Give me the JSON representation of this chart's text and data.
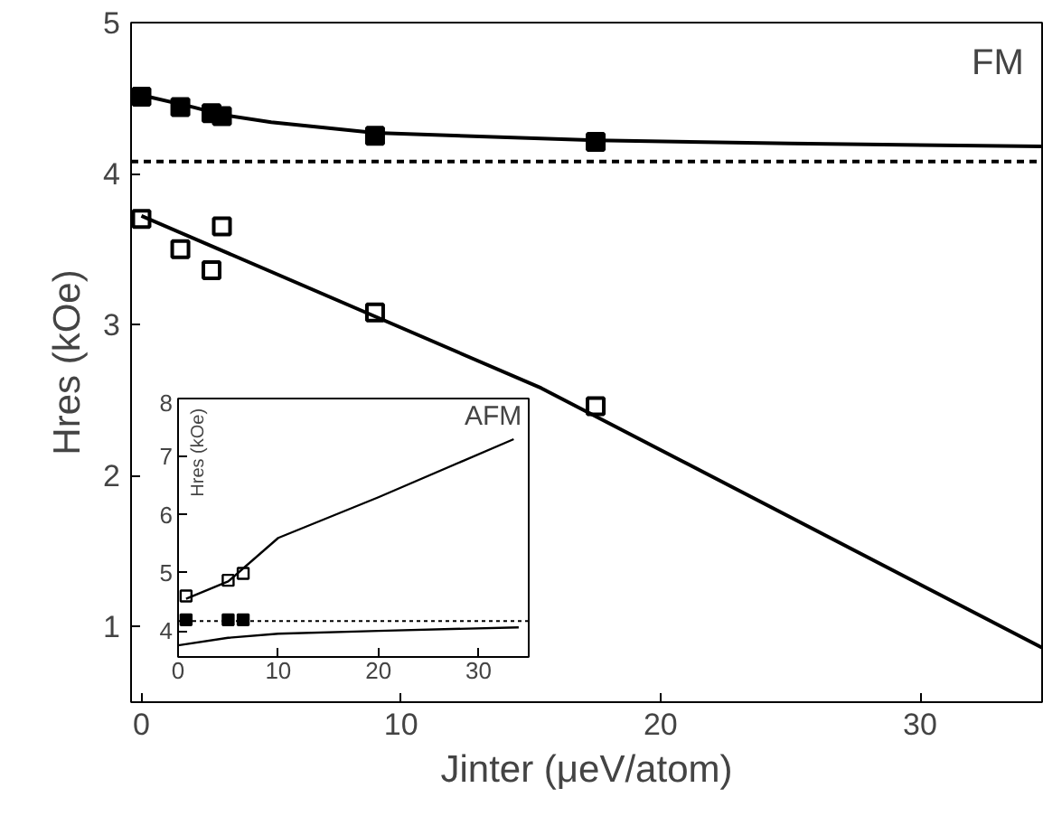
{
  "chart_data": [
    {
      "type": "scatter",
      "xlabel": "Jinter (μeV/atom)",
      "ylabel": "Hres (kOe)",
      "xlim": [
        -0.4,
        34.7
      ],
      "ylim": [
        0.5,
        5
      ],
      "xticks": [
        0,
        10,
        20,
        30
      ],
      "yticks": [
        1,
        2,
        3,
        4,
        5
      ],
      "annotations": [
        "FM"
      ],
      "ref_lines": [
        {
          "axis": "y",
          "value": 4.08,
          "label": null,
          "line_style": "dashed",
          "color": "#000000"
        }
      ],
      "series": [
        {
          "color": "#000000",
          "marker": "square",
          "x": [
            0,
            1.5,
            2.7,
            3.1,
            9,
            17.5
          ],
          "values": [
            4.51,
            4.44,
            4.4,
            4.38,
            4.25,
            4.21
          ]
        },
        {
          "type": "line",
          "color": "#000000",
          "marker": "none",
          "x": [
            0,
            2,
            3.1,
            5,
            9,
            17.5,
            25,
            34.7
          ],
          "values": [
            4.52,
            4.44,
            4.39,
            4.34,
            4.27,
            4.22,
            4.2,
            4.18
          ]
        },
        {
          "color": "#ffffff",
          "marker": "square",
          "x": [
            0,
            1.5,
            2.7,
            3.1,
            9,
            17.5
          ],
          "values": [
            3.7,
            3.5,
            3.36,
            3.65,
            3.08,
            2.46
          ]
        },
        {
          "type": "line",
          "color": "#000000",
          "marker": "none",
          "x": [
            0,
            15.4,
            34.7
          ],
          "values": [
            3.72,
            2.58,
            0.86
          ]
        }
      ]
    },
    {
      "type": "scatter",
      "ylabel": "Hres (kOe)",
      "xlim": [
        0,
        35
      ],
      "ylim": [
        3.55,
        8
      ],
      "xticks": [
        0,
        10,
        20,
        30
      ],
      "yticks": [
        4,
        5,
        6,
        7,
        8
      ],
      "annotations": [
        "AFM"
      ],
      "ref_lines": [
        {
          "axis": "y",
          "value": 4.17,
          "label": null,
          "line_style": "dotted",
          "color": "#000000"
        }
      ],
      "series": [
        {
          "color": "#ffffff",
          "marker": "square",
          "x": [
            0.8,
            5,
            6.5
          ],
          "values": [
            4.6,
            4.87,
            4.99
          ]
        },
        {
          "color": "#000000",
          "marker": "square",
          "x": [
            0.8,
            5,
            6.5
          ],
          "values": [
            4.19,
            4.19,
            4.19
          ]
        },
        {
          "type": "line",
          "color": "#000000",
          "marker": "none",
          "x": [
            0.8,
            5,
            10,
            20,
            33.5
          ],
          "values": [
            4.55,
            4.85,
            5.6,
            6.3,
            7.3
          ]
        },
        {
          "type": "line",
          "color": "#000000",
          "marker": "none",
          "x": [
            0,
            5,
            10,
            20,
            34
          ],
          "values": [
            3.75,
            3.88,
            3.95,
            4.0,
            4.06
          ]
        }
      ]
    }
  ]
}
